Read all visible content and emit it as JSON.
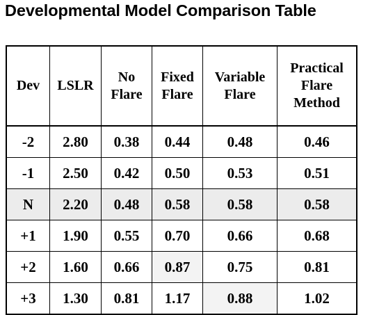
{
  "title": "Developmental Model Comparison Table",
  "table": {
    "headers": [
      [
        "Dev"
      ],
      [
        "LSLR"
      ],
      [
        "No",
        "Flare"
      ],
      [
        "Fixed",
        "Flare"
      ],
      [
        "Variable",
        "Flare"
      ],
      [
        "Practical",
        "Flare",
        "Method"
      ]
    ],
    "rows": [
      [
        "-2",
        "2.80",
        "0.38",
        "0.44",
        "0.48",
        "0.46"
      ],
      [
        "-1",
        "2.50",
        "0.42",
        "0.50",
        "0.53",
        "0.51"
      ],
      [
        "N",
        "2.20",
        "0.48",
        "0.58",
        "0.58",
        "0.58"
      ],
      [
        "+1",
        "1.90",
        "0.55",
        "0.70",
        "0.66",
        "0.68"
      ],
      [
        "+2",
        "1.60",
        "0.66",
        "0.87",
        "0.75",
        "0.81"
      ],
      [
        "+3",
        "1.30",
        "0.81",
        "1.17",
        "0.88",
        "1.02"
      ]
    ],
    "highlighted_row": "N"
  },
  "colors": {
    "text": "#000000",
    "border": "#000000",
    "highlight": "#ececec"
  }
}
